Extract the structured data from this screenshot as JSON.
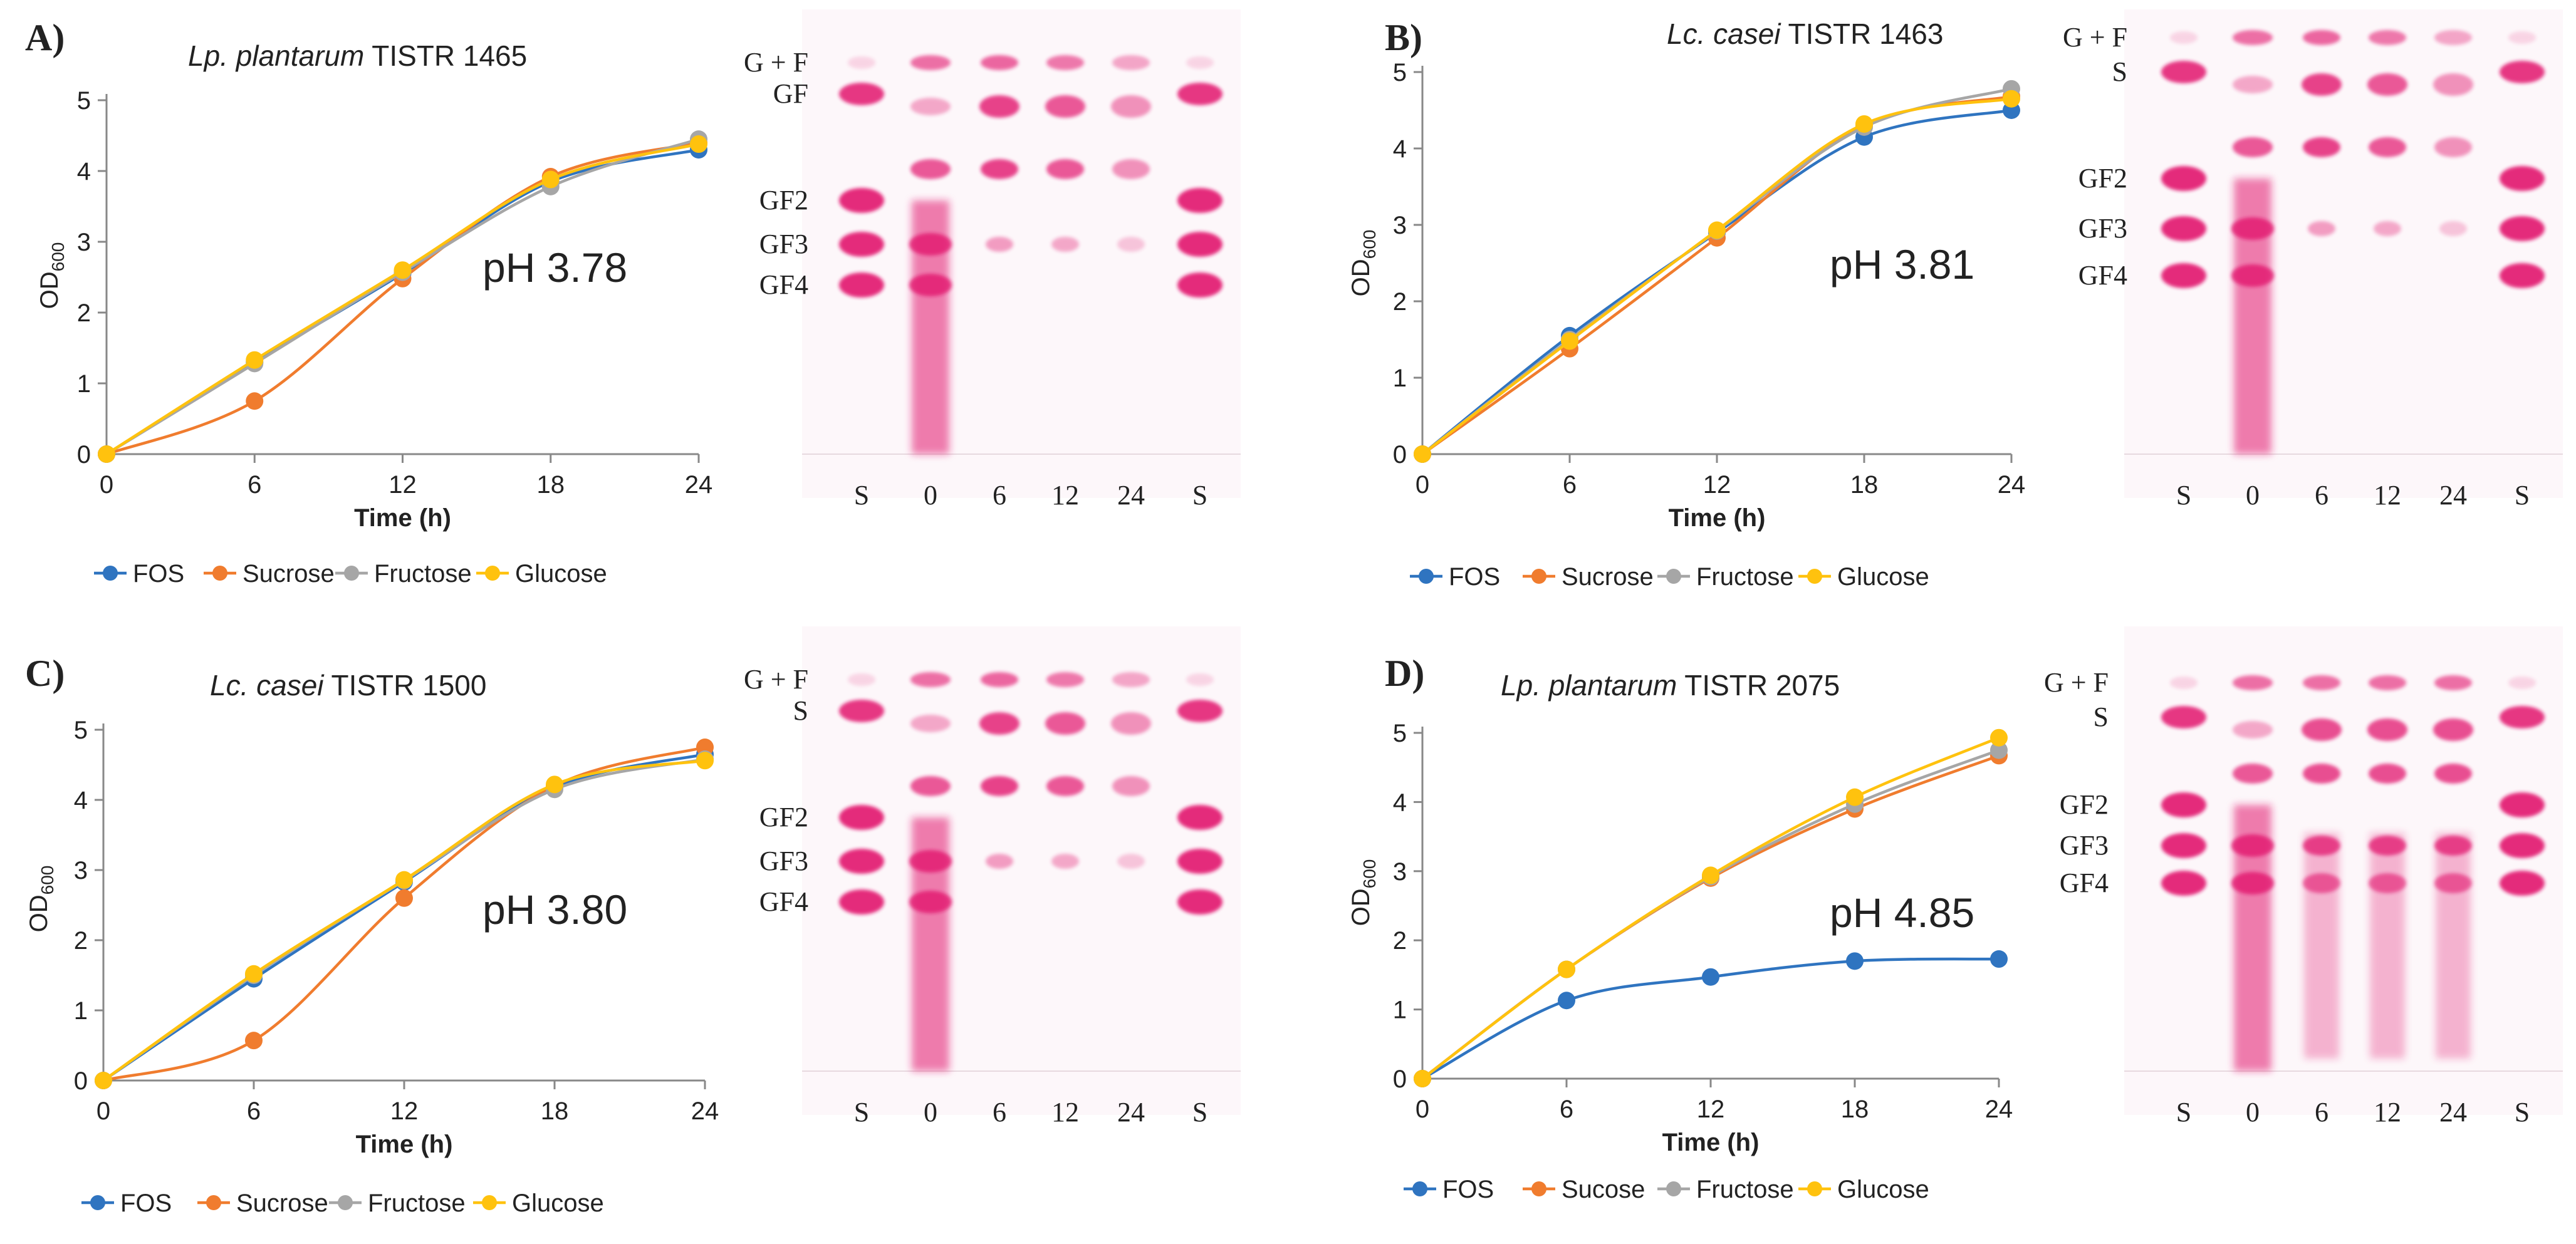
{
  "chart_data": [
    {
      "type": "line",
      "panel_label": "A)",
      "title_italic": "Lp. plantarum",
      "title_rest": " TISTR 1465",
      "xlabel": "Time (h)",
      "ylabel_main": "OD",
      "ylabel_sub": "600",
      "x": [
        0,
        6,
        12,
        18,
        24
      ],
      "xlim": [
        0,
        24
      ],
      "ylim": [
        0,
        5
      ],
      "yticks": [
        0,
        1,
        2,
        3,
        4,
        5
      ],
      "ph_label": "pH 3.78",
      "legend": {
        "position": "bottom"
      },
      "series": [
        {
          "name": "FOS",
          "color": "#2f74c0",
          "values": [
            0,
            1.3,
            2.55,
            3.85,
            4.3
          ]
        },
        {
          "name": "Sucrose",
          "color": "#f07c2e",
          "values": [
            0,
            0.75,
            2.48,
            3.92,
            4.4
          ]
        },
        {
          "name": "Fructose",
          "color": "#a6a6a6",
          "values": [
            0,
            1.28,
            2.57,
            3.78,
            4.45
          ]
        },
        {
          "name": "Glucose",
          "color": "#ffc20e",
          "values": [
            0,
            1.33,
            2.6,
            3.88,
            4.38
          ]
        }
      ],
      "tlc": {
        "band_labels": [
          "G + F",
          "GF",
          "GF2",
          "GF3",
          "GF4"
        ],
        "lane_labels": [
          "S",
          "0",
          "6",
          "12",
          "24",
          "S"
        ]
      }
    },
    {
      "type": "line",
      "panel_label": "B)",
      "title_italic": "Lc. casei",
      "title_rest": " TISTR 1463",
      "xlabel": "Time (h)",
      "ylabel_main": "OD",
      "ylabel_sub": "600",
      "x": [
        0,
        6,
        12,
        18,
        24
      ],
      "xlim": [
        0,
        24
      ],
      "ylim": [
        0,
        5
      ],
      "yticks": [
        0,
        1,
        2,
        3,
        4,
        5
      ],
      "ph_label": "pH 3.81",
      "legend": {
        "position": "bottom"
      },
      "series": [
        {
          "name": "FOS",
          "color": "#2f74c0",
          "values": [
            0,
            1.55,
            2.9,
            4.15,
            4.5
          ]
        },
        {
          "name": "Sucrose",
          "color": "#f07c2e",
          "values": [
            0,
            1.38,
            2.83,
            4.3,
            4.68
          ]
        },
        {
          "name": "Fructose",
          "color": "#a6a6a6",
          "values": [
            0,
            1.5,
            2.92,
            4.28,
            4.78
          ]
        },
        {
          "name": "Glucose",
          "color": "#ffc20e",
          "values": [
            0,
            1.48,
            2.93,
            4.32,
            4.65
          ]
        }
      ],
      "tlc": {
        "band_labels": [
          "G + F",
          "S",
          "GF2",
          "GF3",
          "GF4"
        ],
        "lane_labels": [
          "S",
          "0",
          "6",
          "12",
          "24",
          "S"
        ]
      }
    },
    {
      "type": "line",
      "panel_label": "C)",
      "title_italic": "Lc. casei",
      "title_rest": " TISTR 1500",
      "xlabel": "Time (h)",
      "ylabel_main": "OD",
      "ylabel_sub": "600",
      "x": [
        0,
        6,
        12,
        18,
        24
      ],
      "xlim": [
        0,
        24
      ],
      "ylim": [
        0,
        5
      ],
      "yticks": [
        0,
        1,
        2,
        3,
        4,
        5
      ],
      "ph_label": "pH 3.80",
      "legend": {
        "position": "bottom"
      },
      "series": [
        {
          "name": "FOS",
          "color": "#2f74c0",
          "values": [
            0,
            1.45,
            2.83,
            4.18,
            4.65
          ]
        },
        {
          "name": "Sucrose",
          "color": "#f07c2e",
          "values": [
            0,
            0.57,
            2.6,
            4.2,
            4.75
          ]
        },
        {
          "name": "Fructose",
          "color": "#a6a6a6",
          "values": [
            0,
            1.5,
            2.85,
            4.15,
            4.58
          ]
        },
        {
          "name": "Glucose",
          "color": "#ffc20e",
          "values": [
            0,
            1.52,
            2.86,
            4.22,
            4.56
          ]
        }
      ],
      "tlc": {
        "band_labels": [
          "G + F",
          "S",
          "GF2",
          "GF3",
          "GF4"
        ],
        "lane_labels": [
          "S",
          "0",
          "6",
          "12",
          "24",
          "S"
        ]
      }
    },
    {
      "type": "line",
      "panel_label": "D)",
      "title_italic": "Lp. plantarum",
      "title_rest": " TISTR 2075",
      "xlabel": "Time (h)",
      "ylabel_main": "OD",
      "ylabel_sub": "600",
      "x": [
        0,
        6,
        12,
        18,
        24
      ],
      "xlim": [
        0,
        24
      ],
      "ylim": [
        0,
        5
      ],
      "yticks": [
        0,
        1,
        2,
        3,
        4,
        5
      ],
      "ph_label": "pH 4.85",
      "legend": {
        "position": "bottom"
      },
      "series": [
        {
          "name": "FOS",
          "color": "#2f74c0",
          "values": [
            0,
            1.13,
            1.47,
            1.7,
            1.73
          ]
        },
        {
          "name": "Sucose",
          "color": "#f07c2e",
          "values": [
            0,
            1.58,
            2.9,
            3.9,
            4.67
          ]
        },
        {
          "name": "Fructose",
          "color": "#a6a6a6",
          "values": [
            0,
            1.58,
            2.92,
            3.97,
            4.75
          ]
        },
        {
          "name": "Glucose",
          "color": "#ffc20e",
          "values": [
            0,
            1.58,
            2.94,
            4.07,
            4.93
          ]
        }
      ],
      "tlc": {
        "band_labels": [
          "G + F",
          "S",
          "GF2",
          "GF3",
          "GF4"
        ],
        "lane_labels": [
          "S",
          "0",
          "6",
          "12",
          "24",
          "S"
        ]
      }
    }
  ]
}
